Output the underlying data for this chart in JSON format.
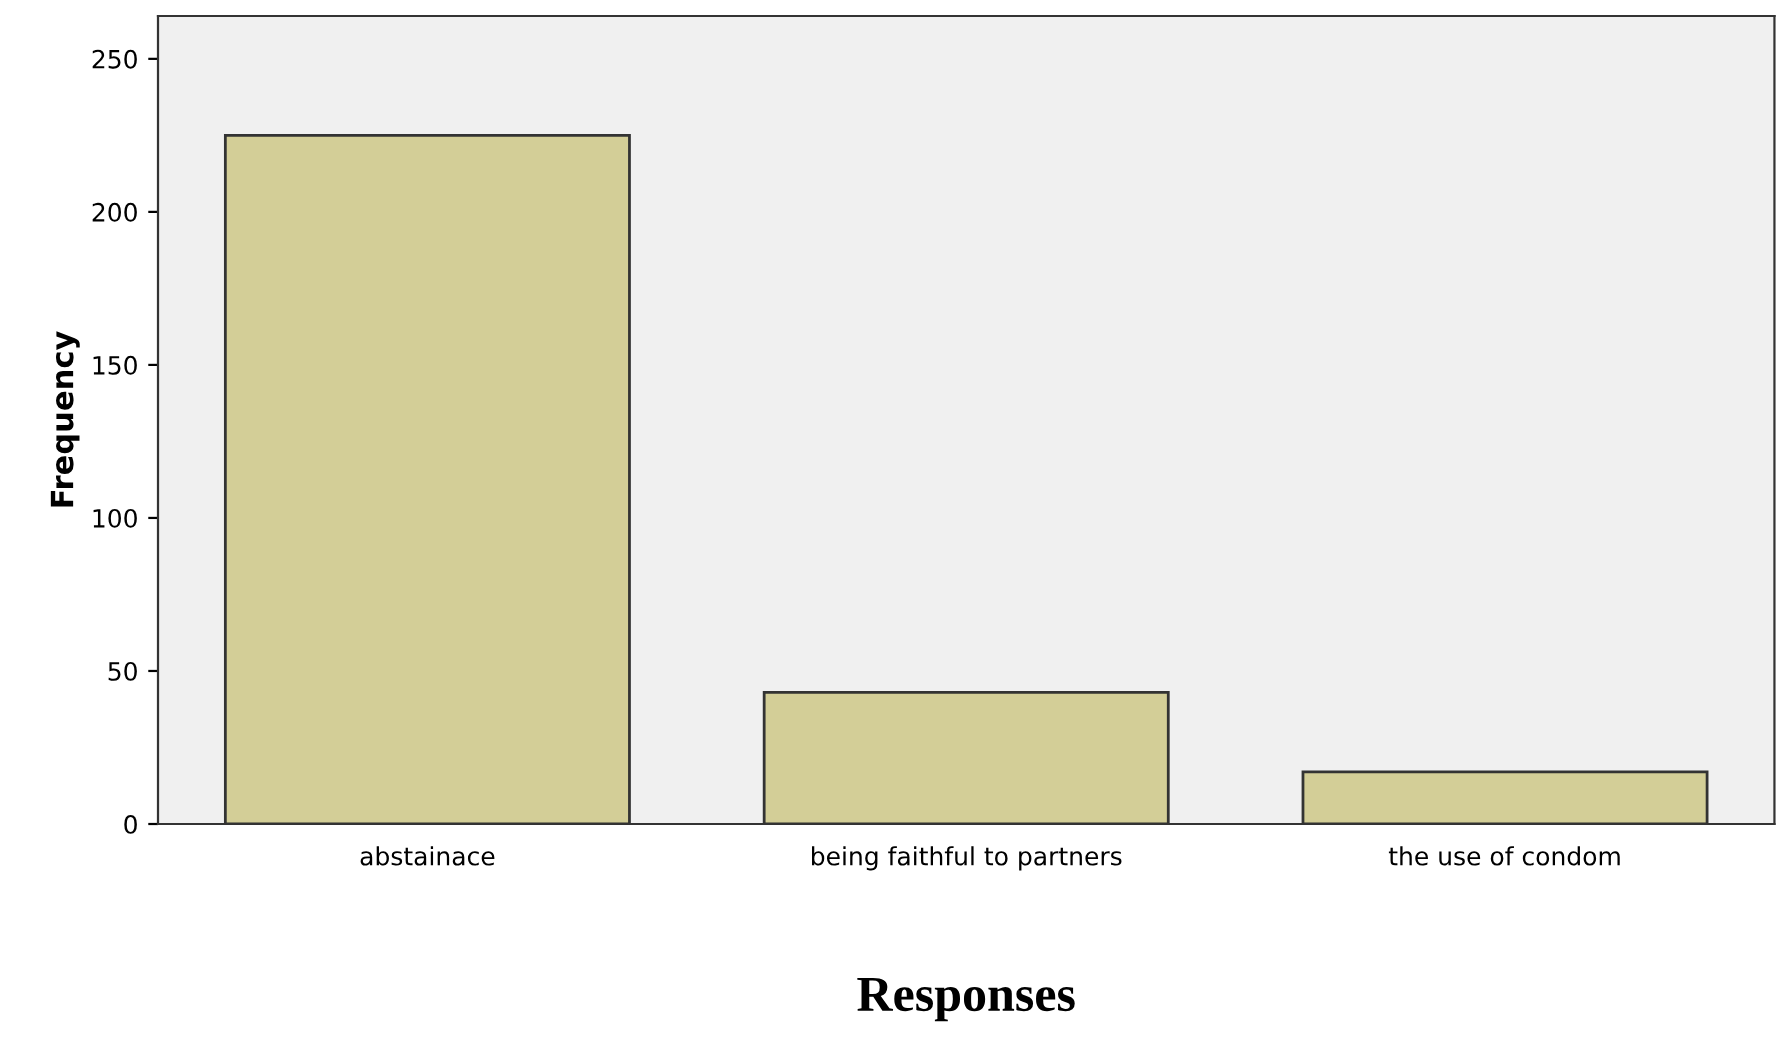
{
  "chart_data": {
    "type": "bar",
    "xlabel": "Responses",
    "ylabel": "Frequency",
    "categories": [
      "abstainace",
      "being faithful to partners",
      "the use of condom"
    ],
    "values": [
      225,
      43,
      17
    ],
    "color": "#d3ce97",
    "ylim": [
      0,
      264
    ],
    "yticks": [
      0,
      50,
      100,
      150,
      200,
      250
    ],
    "grid": false
  }
}
